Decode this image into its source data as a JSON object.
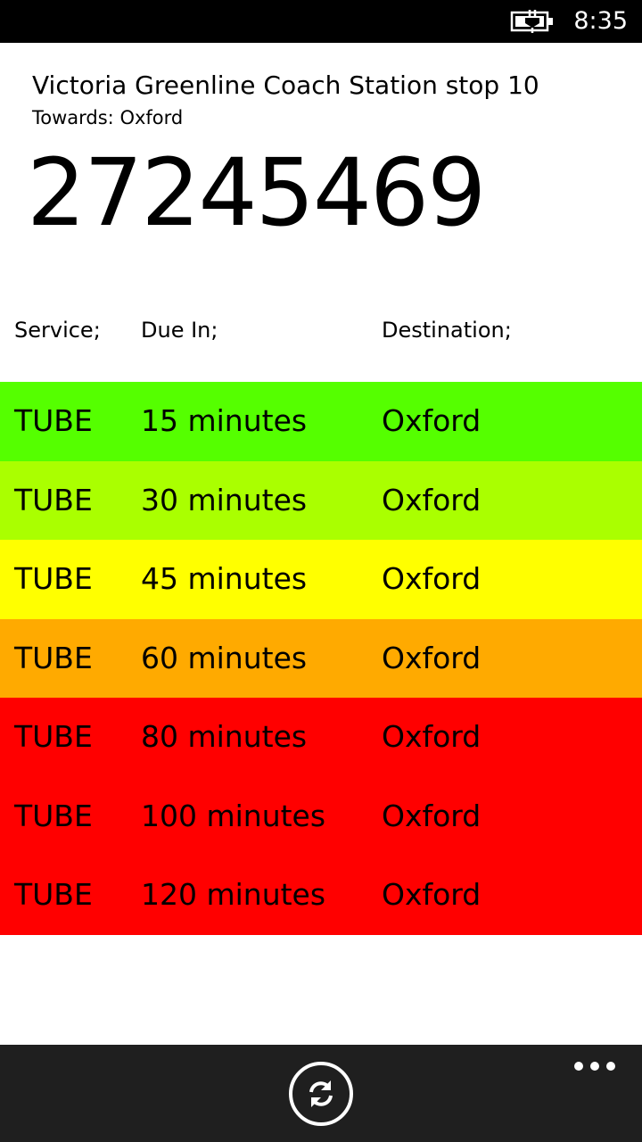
{
  "status_bar": {
    "time": "8:35",
    "battery_icon": "battery-charging-icon"
  },
  "stop": {
    "name": "Victoria Greenline Coach Station stop 10",
    "towards": "Towards: Oxford",
    "code": "27245469"
  },
  "table": {
    "headers": {
      "service": "Service;",
      "due": "Due In;",
      "destination": "Destination;"
    },
    "rows": [
      {
        "service": "TUBE",
        "due": "15 minutes",
        "destination": "Oxford",
        "color": "#55ff00"
      },
      {
        "service": "TUBE",
        "due": "30 minutes",
        "destination": "Oxford",
        "color": "#aaff00"
      },
      {
        "service": "TUBE",
        "due": "45 minutes",
        "destination": "Oxford",
        "color": "#ffff00"
      },
      {
        "service": "TUBE",
        "due": "60 minutes",
        "destination": "Oxford",
        "color": "#ffaa00"
      },
      {
        "service": "TUBE",
        "due": "80 minutes",
        "destination": "Oxford",
        "color": "#ff0000"
      },
      {
        "service": "TUBE",
        "due": "100 minutes",
        "destination": "Oxford",
        "color": "#ff0000"
      },
      {
        "service": "TUBE",
        "due": "120 minutes",
        "destination": "Oxford",
        "color": "#ff0000"
      }
    ]
  },
  "app_bar": {
    "refresh_icon": "refresh-icon",
    "more_icon": "ellipsis-icon"
  }
}
